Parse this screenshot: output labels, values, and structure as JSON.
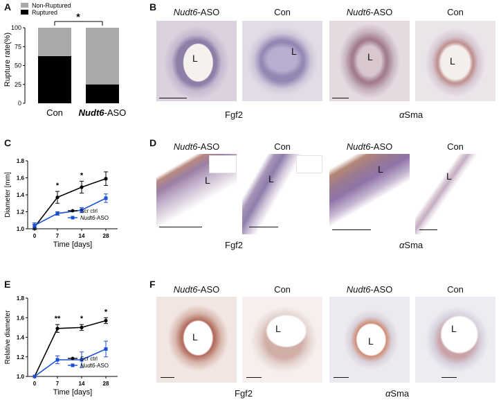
{
  "panels": {
    "A": "A",
    "B": "B",
    "C": "C",
    "D": "D",
    "E": "E",
    "F": "F"
  },
  "lumen_label": "L",
  "gene_ital": "Nudt6",
  "gene_suffix": "-ASO",
  "con": "Con",
  "stains": {
    "fgf2": "Fgf2",
    "asma_alpha": "α",
    "asma_rest": "Sma"
  },
  "chart_A": {
    "legend_nonruptured": "Non-Ruptured",
    "legend_ruptured": "Ruptured",
    "ylabel": "Rupture rate(%)",
    "yticks": [
      "0",
      "25",
      "50",
      "75",
      "100"
    ],
    "xlabel_con": "Con",
    "significance": "*"
  },
  "chart_C": {
    "ylabel": "Diameter [mm]",
    "xlabel": "Time [days]",
    "yticks": [
      "1.0",
      "1.2",
      "1.4",
      "1.6",
      "1.8"
    ],
    "xticks": [
      "0",
      "7",
      "14",
      "28"
    ],
    "legend_scr": "Scr ctrl",
    "stars": [
      "*",
      "*"
    ]
  },
  "chart_E": {
    "ylabel": "Relative diameter",
    "xlabel": "Time [days]",
    "yticks": [
      "1.0",
      "1.2",
      "1.4",
      "1.6",
      "1.8"
    ],
    "xticks": [
      "0",
      "7",
      "14",
      "28"
    ],
    "legend_scr": "Scr ctrl",
    "stars": [
      "**",
      "*",
      "*"
    ]
  },
  "colors": {
    "scr": "#000000",
    "aso": "#1a4fd6",
    "nonruptured": "#a9a9ab",
    "ruptured": "#000000"
  },
  "chart_data": [
    {
      "type": "bar",
      "categories": [
        "Con",
        "Nudt6-ASO"
      ],
      "series": [
        {
          "name": "Ruptured",
          "values": [
            62.5,
            25
          ]
        },
        {
          "name": "Non-Ruptured",
          "values": [
            37.5,
            75
          ]
        }
      ],
      "ylabel": "Rupture rate(%)",
      "ylim": [
        0,
        100
      ],
      "stacked": true,
      "legend": "top-left"
    },
    {
      "type": "line",
      "x": [
        0,
        7,
        14,
        28
      ],
      "series": [
        {
          "name": "Scr ctrl",
          "values": [
            1.02,
            1.37,
            1.49,
            1.59
          ],
          "err": [
            0.03,
            0.07,
            0.07,
            0.08
          ]
        },
        {
          "name": "Nudt6-ASO",
          "values": [
            1.04,
            1.18,
            1.22,
            1.36
          ],
          "err": [
            0.03,
            0.02,
            0.03,
            0.05
          ]
        }
      ],
      "xlabel": "Time [days]",
      "ylabel": "Diameter [mm]",
      "ylim": [
        1.0,
        1.8
      ],
      "legend": "bottom-right"
    },
    {
      "type": "line",
      "x": [
        0,
        7,
        14,
        28
      ],
      "series": [
        {
          "name": "Scr ctrl",
          "values": [
            1.0,
            1.49,
            1.5,
            1.57
          ],
          "err": [
            0,
            0.04,
            0.03,
            0.03
          ]
        },
        {
          "name": "Nudt6-ASO",
          "values": [
            1.0,
            1.17,
            1.17,
            1.28
          ],
          "err": [
            0,
            0.04,
            0.08,
            0.08
          ]
        }
      ],
      "xlabel": "Time [days]",
      "ylabel": "Relative diameter",
      "ylim": [
        1.0,
        1.8
      ],
      "legend": "bottom-right"
    }
  ]
}
